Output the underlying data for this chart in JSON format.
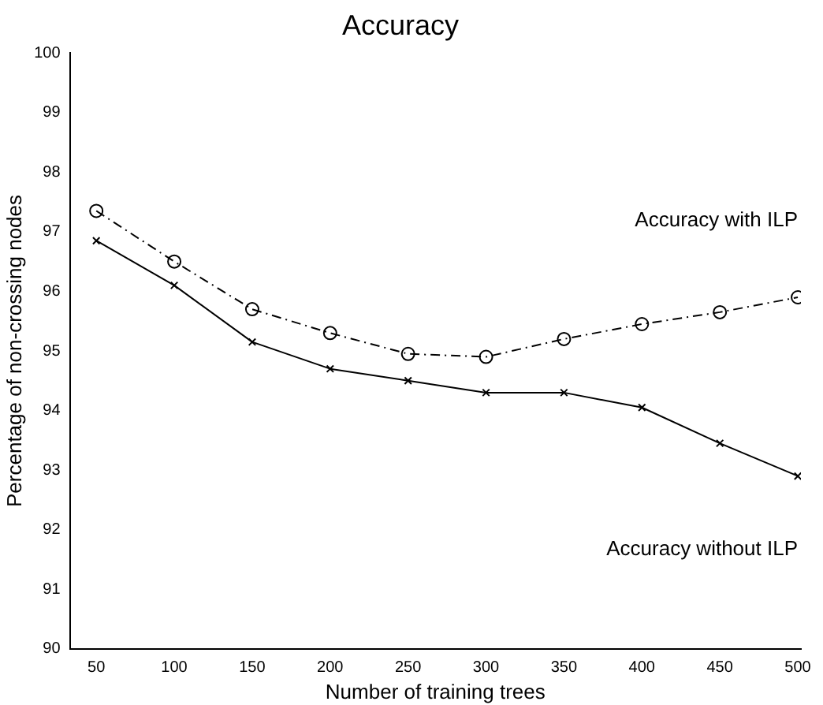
{
  "chart_data": {
    "type": "line",
    "title": "Accuracy",
    "xlabel": "Number of training trees",
    "ylabel": "Percentage of non-crossing nodes",
    "x": [
      50,
      100,
      150,
      200,
      250,
      300,
      350,
      400,
      450,
      500
    ],
    "series": [
      {
        "name": "Accuracy with ILP",
        "color": "#000000",
        "marker": "circle",
        "line_style": "dashed",
        "values": [
          97.35,
          96.5,
          95.7,
          95.3,
          94.95,
          94.9,
          95.2,
          95.45,
          95.65,
          95.9
        ]
      },
      {
        "name": "Accuracy without ILP",
        "color": "#000000",
        "marker": "cross",
        "line_style": "solid",
        "values": [
          96.85,
          96.1,
          95.15,
          94.7,
          94.5,
          94.3,
          94.3,
          94.05,
          93.45,
          92.9
        ]
      }
    ],
    "xlim": [
      33,
      502
    ],
    "xticks": [
      50,
      100,
      150,
      200,
      250,
      300,
      350,
      400,
      450,
      500
    ],
    "ylim": [
      90,
      100
    ],
    "yticks": [
      90,
      91,
      92,
      93,
      94,
      95,
      96,
      97,
      98,
      99,
      100
    ],
    "grid": false,
    "legend": false
  }
}
